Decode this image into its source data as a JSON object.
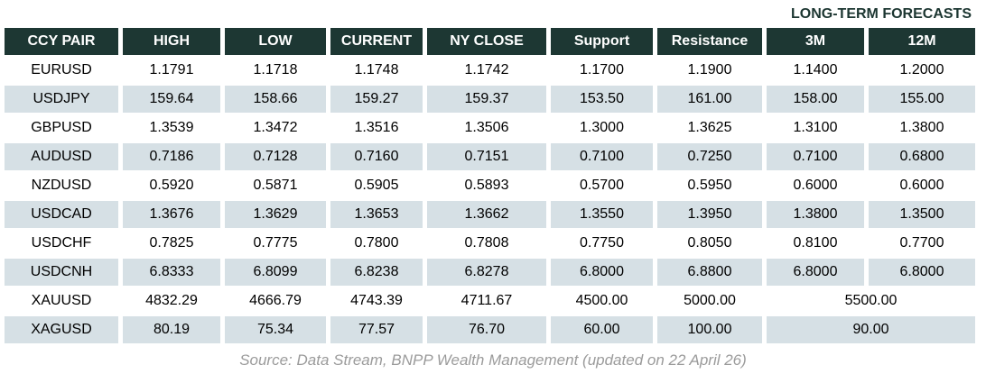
{
  "title": "LONG-TERM FORECASTS",
  "table": {
    "columns": [
      "CCY PAIR",
      "HIGH",
      "LOW",
      "CURRENT",
      "NY CLOSE",
      "Support",
      "Resistance",
      "3M",
      "12M"
    ],
    "rows": [
      {
        "pair": "EURUSD",
        "high": "1.1791",
        "low": "1.1718",
        "current": "1.1748",
        "ny_close": "1.1742",
        "support": "1.1700",
        "resistance": "1.1900",
        "m3": "1.1400",
        "m12": "1.2000"
      },
      {
        "pair": "USDJPY",
        "high": "159.64",
        "low": "158.66",
        "current": "159.27",
        "ny_close": "159.37",
        "support": "153.50",
        "resistance": "161.00",
        "m3": "158.00",
        "m12": "155.00"
      },
      {
        "pair": "GBPUSD",
        "high": "1.3539",
        "low": "1.3472",
        "current": "1.3516",
        "ny_close": "1.3506",
        "support": "1.3000",
        "resistance": "1.3625",
        "m3": "1.3100",
        "m12": "1.3800"
      },
      {
        "pair": "AUDUSD",
        "high": "0.7186",
        "low": "0.7128",
        "current": "0.7160",
        "ny_close": "0.7151",
        "support": "0.7100",
        "resistance": "0.7250",
        "m3": "0.7100",
        "m12": "0.6800"
      },
      {
        "pair": "NZDUSD",
        "high": "0.5920",
        "low": "0.5871",
        "current": "0.5905",
        "ny_close": "0.5893",
        "support": "0.5700",
        "resistance": "0.5950",
        "m3": "0.6000",
        "m12": "0.6000"
      },
      {
        "pair": "USDCAD",
        "high": "1.3676",
        "low": "1.3629",
        "current": "1.3653",
        "ny_close": "1.3662",
        "support": "1.3550",
        "resistance": "1.3950",
        "m3": "1.3800",
        "m12": "1.3500"
      },
      {
        "pair": "USDCHF",
        "high": "0.7825",
        "low": "0.7775",
        "current": "0.7800",
        "ny_close": "0.7808",
        "support": "0.7750",
        "resistance": "0.8050",
        "m3": "0.8100",
        "m12": "0.7700"
      },
      {
        "pair": "USDCNH",
        "high": "6.8333",
        "low": "6.8099",
        "current": "6.8238",
        "ny_close": "6.8278",
        "support": "6.8000",
        "resistance": "6.8800",
        "m3": "6.8000",
        "m12": "6.8000"
      },
      {
        "pair": "XAUUSD",
        "high": "4832.29",
        "low": "4666.79",
        "current": "4743.39",
        "ny_close": "4711.67",
        "support": "4500.00",
        "resistance": "5000.00",
        "forecast_merged": "5500.00"
      },
      {
        "pair": "XAGUSD",
        "high": "80.19",
        "low": "75.34",
        "current": "77.57",
        "ny_close": "76.70",
        "support": "60.00",
        "resistance": "100.00",
        "forecast_merged": "90.00"
      }
    ]
  },
  "source": "Source: Data Stream, BNPP Wealth Management (updated on 22 April 26)",
  "colors": {
    "header_bg": "#1d3733",
    "header_text": "#ffffff",
    "row_shaded": "#d6e0e5",
    "title_text": "#1c3631",
    "source_text": "#9b9b9b"
  }
}
